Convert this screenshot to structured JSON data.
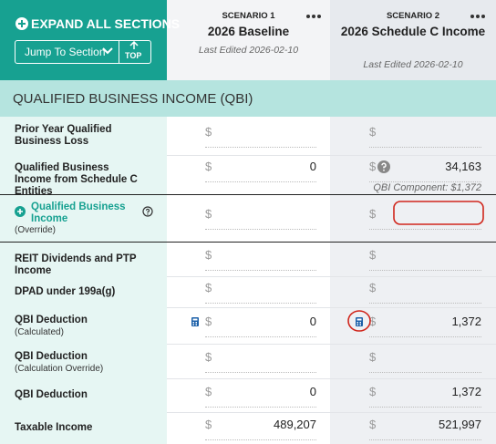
{
  "sidebar": {
    "expand_all": "EXPAND ALL SECTIONS",
    "jump_to": "Jump To Section",
    "top": "TOP"
  },
  "scenarios": [
    {
      "label": "SCENARIO 1",
      "name": "2026 Baseline",
      "edited": "Last Edited 2026-02-10"
    },
    {
      "label": "SCENARIO 2",
      "name": "2026 Schedule C Income",
      "edited": "Last Edited 2026-02-10"
    }
  ],
  "currency": "$",
  "section": "QUALIFIED BUSINESS INCOME (QBI)",
  "rows": [
    {
      "label": "Prior Year Qualified Business Loss"
    },
    {
      "label": "Qualified Business Income from Schedule C Entities",
      "scenario_1": "0",
      "scenario_2": "34,163",
      "note": "QBI Component: $1,372"
    },
    {
      "label": "Qualified Business Income",
      "sublabel": "(Override)"
    },
    {
      "label": "REIT Dividends and PTP Income"
    },
    {
      "label": "DPAD under 199a(g)"
    },
    {
      "label": "QBI Deduction",
      "sublabel": "(Calculated)",
      "scenario_1": "0",
      "scenario_2": "1,372"
    },
    {
      "label": "QBI Deduction",
      "sublabel": "(Calculation Override)"
    },
    {
      "label": "QBI Deduction",
      "scenario_1": "0",
      "scenario_2": "1,372"
    },
    {
      "label": "Taxable Income",
      "scenario_1": "489,207",
      "scenario_2": "521,997"
    }
  ]
}
